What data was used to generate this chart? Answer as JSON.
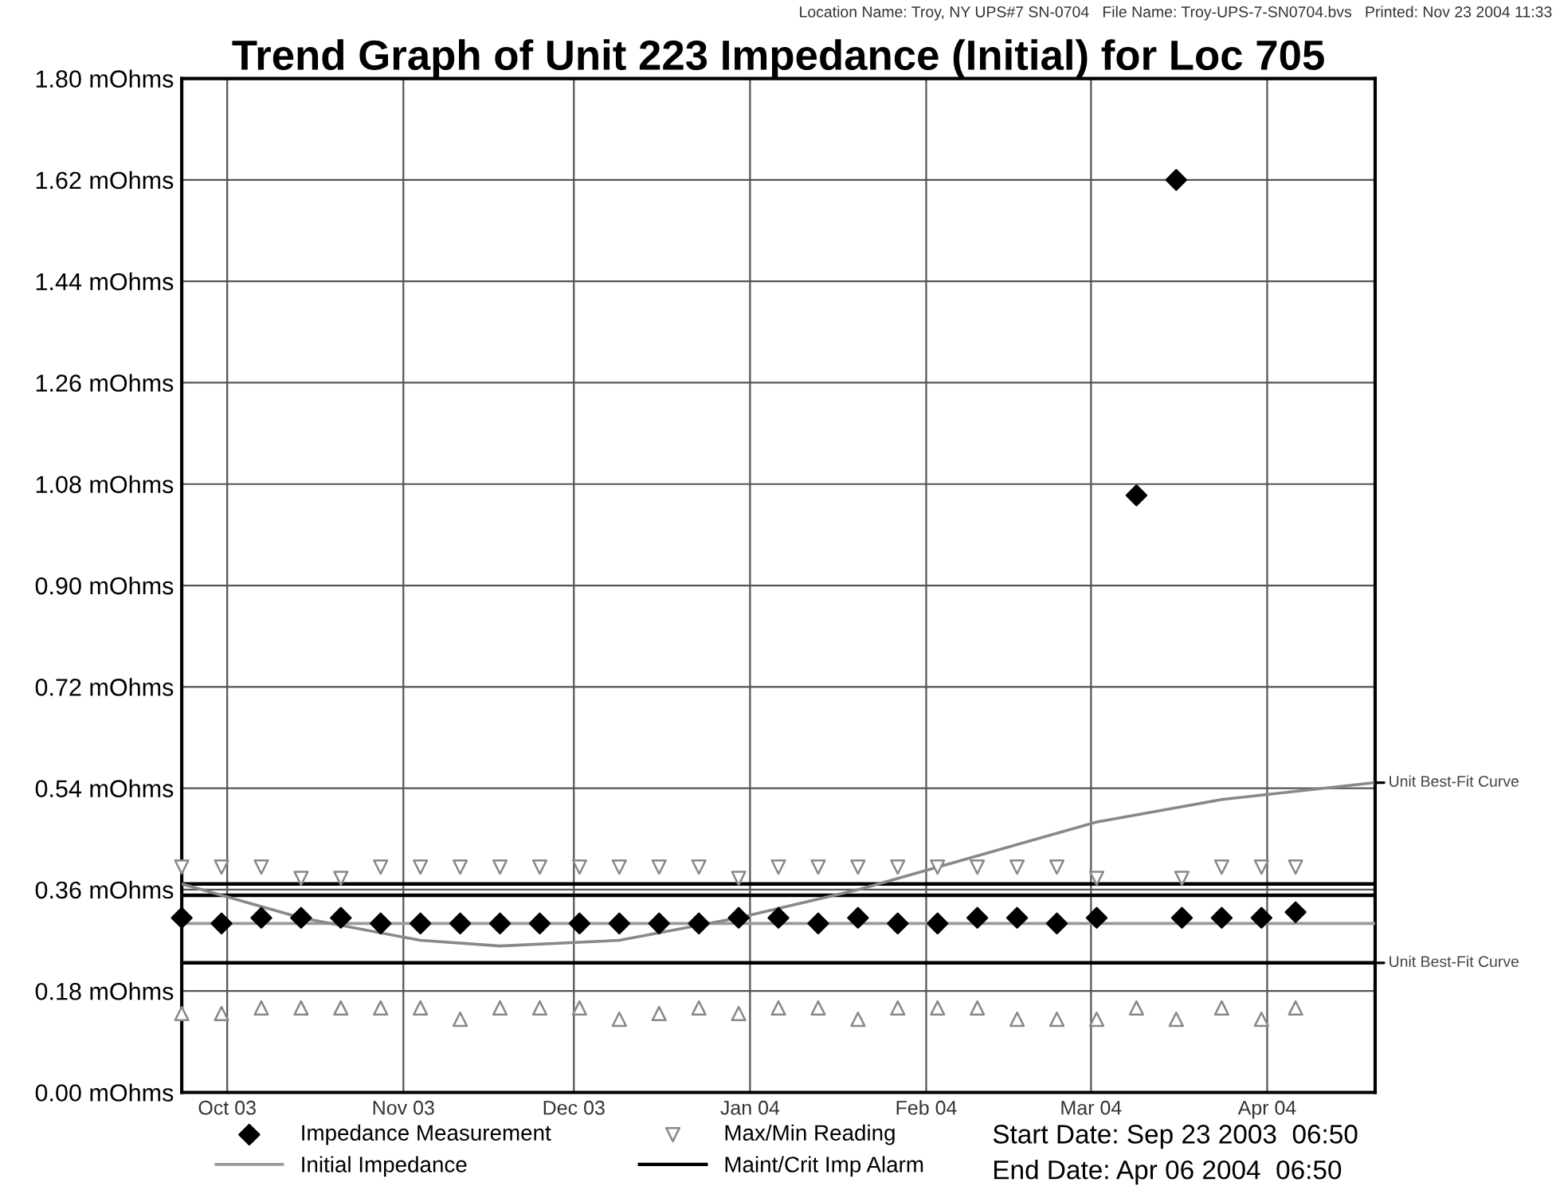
{
  "chart_data": {
    "type": "scatter",
    "title": "Trend Graph of Unit 223 Impedance (Initial) for Loc 705",
    "annotations": [
      "Location Name: Troy, NY UPS#7 SN-0704   File Name: Troy-UPS-7-SN0704.bvs   Printed: Nov 23 2004 11:33",
      "Start Date: Sep 23 2003  06:50",
      "End Date: Apr 06 2004  06:50",
      {
        "text": "Unit Best-Fit Curve",
        "x": "2004-04-20",
        "y": 0.55
      },
      {
        "text": "Unit Best-Fit Curve",
        "x": "2004-04-20",
        "y": 0.23
      }
    ],
    "series": [
      {
        "name": "Impedance Measurement",
        "marker": "diamond",
        "color": "#000000",
        "x": [
          "2003-09-23",
          "2003-09-30",
          "2003-10-07",
          "2003-10-14",
          "2003-10-21",
          "2003-10-28",
          "2003-11-04",
          "2003-11-11",
          "2003-11-18",
          "2003-11-25",
          "2003-12-02",
          "2003-12-09",
          "2003-12-16",
          "2003-12-23",
          "2003-12-30",
          "2004-01-06",
          "2004-01-13",
          "2004-01-20",
          "2004-01-27",
          "2004-02-03",
          "2004-02-10",
          "2004-02-17",
          "2004-02-24",
          "2004-03-02",
          "2004-03-09",
          "2004-03-16",
          "2004-03-17",
          "2004-03-24",
          "2004-03-31",
          "2004-04-06"
        ],
        "values": [
          0.31,
          0.3,
          0.31,
          0.31,
          0.31,
          0.3,
          0.3,
          0.3,
          0.3,
          0.3,
          0.3,
          0.3,
          0.3,
          0.3,
          0.31,
          0.31,
          0.3,
          0.31,
          0.3,
          0.3,
          0.31,
          0.31,
          0.3,
          0.31,
          1.06,
          1.62,
          0.31,
          0.31,
          0.31,
          0.32
        ]
      },
      {
        "name": "Max/Min Reading",
        "marker": "triangle_down",
        "color": "#888888",
        "x": [
          "2003-09-23",
          "2003-09-30",
          "2003-10-07",
          "2003-10-14",
          "2003-10-21",
          "2003-10-28",
          "2003-11-04",
          "2003-11-11",
          "2003-11-18",
          "2003-11-25",
          "2003-12-02",
          "2003-12-09",
          "2003-12-16",
          "2003-12-23",
          "2003-12-30",
          "2004-01-06",
          "2004-01-13",
          "2004-01-20",
          "2004-01-27",
          "2004-02-03",
          "2004-02-10",
          "2004-02-17",
          "2004-02-24",
          "2004-03-02",
          "2004-03-17",
          "2004-03-24",
          "2004-03-31",
          "2004-04-06"
        ],
        "values": [
          0.4,
          0.4,
          0.4,
          0.38,
          0.38,
          0.4,
          0.4,
          0.4,
          0.4,
          0.4,
          0.4,
          0.4,
          0.4,
          0.4,
          0.38,
          0.4,
          0.4,
          0.4,
          0.4,
          0.4,
          0.4,
          0.4,
          0.4,
          0.38,
          0.38,
          0.4,
          0.4,
          0.4
        ]
      },
      {
        "marker": "triangle",
        "color": "#888888",
        "x": [
          "2003-09-23",
          "2003-09-30",
          "2003-10-07",
          "2003-10-14",
          "2003-10-21",
          "2003-10-28",
          "2003-11-04",
          "2003-11-11",
          "2003-11-18",
          "2003-11-25",
          "2003-12-02",
          "2003-12-09",
          "2003-12-16",
          "2003-12-23",
          "2003-12-30",
          "2004-01-06",
          "2004-01-13",
          "2004-01-20",
          "2004-01-27",
          "2004-02-03",
          "2004-02-10",
          "2004-02-17",
          "2004-02-24",
          "2004-03-02",
          "2004-03-09",
          "2004-03-16",
          "2004-03-24",
          "2004-03-31",
          "2004-04-06"
        ],
        "values": [
          0.14,
          0.14,
          0.15,
          0.15,
          0.15,
          0.15,
          0.15,
          0.13,
          0.15,
          0.15,
          0.15,
          0.13,
          0.14,
          0.15,
          0.14,
          0.15,
          0.15,
          0.13,
          0.15,
          0.15,
          0.15,
          0.13,
          0.13,
          0.13,
          0.15,
          0.13,
          0.15,
          0.13,
          0.15
        ]
      },
      {
        "name": "Initial Impedance",
        "type": "line",
        "color": "#999999",
        "x": [
          "2003-09-23",
          "2004-04-20"
        ],
        "values": [
          0.3,
          0.3
        ]
      },
      {
        "name": "Maint/Crit Imp Alarm",
        "type": "line",
        "color": "#000000",
        "x": [
          "2003-09-23",
          "2004-04-20"
        ],
        "values": [
          0.37,
          0.37
        ]
      },
      {
        "type": "line",
        "color": "#000000",
        "x": [
          "2003-09-23",
          "2004-04-20"
        ],
        "values": [
          0.35,
          0.35
        ]
      },
      {
        "type": "line",
        "color": "#000000",
        "x": [
          "2003-09-23",
          "2004-04-20"
        ],
        "values": [
          0.23,
          0.23
        ]
      },
      {
        "type": "line",
        "color": "#888888",
        "x": [
          "2003-09-23",
          "2003-10-14",
          "2003-11-04",
          "2003-11-18",
          "2003-12-09",
          "2003-12-30",
          "2004-01-20",
          "2004-02-10",
          "2004-03-02",
          "2004-03-24",
          "2004-04-20"
        ],
        "values": [
          0.37,
          0.31,
          0.27,
          0.26,
          0.27,
          0.31,
          0.36,
          0.42,
          0.48,
          0.52,
          0.55
        ]
      }
    ],
    "xlim": [
      "2003-09-23",
      "2004-04-20"
    ],
    "xticks": [
      {
        "value": "2003-10-01",
        "label": "Oct 03"
      },
      {
        "value": "2003-11-01",
        "label": "Nov 03"
      },
      {
        "value": "2003-12-01",
        "label": "Dec 03"
      },
      {
        "value": "2004-01-01",
        "label": "Jan 04"
      },
      {
        "value": "2004-02-01",
        "label": "Feb 04"
      },
      {
        "value": "2004-03-01",
        "label": "Mar 04"
      },
      {
        "value": "2004-04-01",
        "label": "Apr 04"
      }
    ],
    "ylim": [
      0,
      1.8
    ],
    "yticks": [
      {
        "value": 0,
        "label": "0.00 mOhms"
      },
      {
        "value": 0.18,
        "label": "0.18 mOhms"
      },
      {
        "value": 0.36,
        "label": "0.36 mOhms"
      },
      {
        "value": 0.54,
        "label": "0.54 mOhms"
      },
      {
        "value": 0.72,
        "label": "0.72 mOhms"
      },
      {
        "value": 0.9,
        "label": "0.90 mOhms"
      },
      {
        "value": 1.08,
        "label": "1.08 mOhms"
      },
      {
        "value": 1.26,
        "label": "1.26 mOhms"
      },
      {
        "value": 1.44,
        "label": "1.44 mOhms"
      },
      {
        "value": 1.62,
        "label": "1.62 mOhms"
      },
      {
        "value": 1.8,
        "label": "1.80 mOhms"
      }
    ],
    "grid": true,
    "legend": "bottom"
  }
}
